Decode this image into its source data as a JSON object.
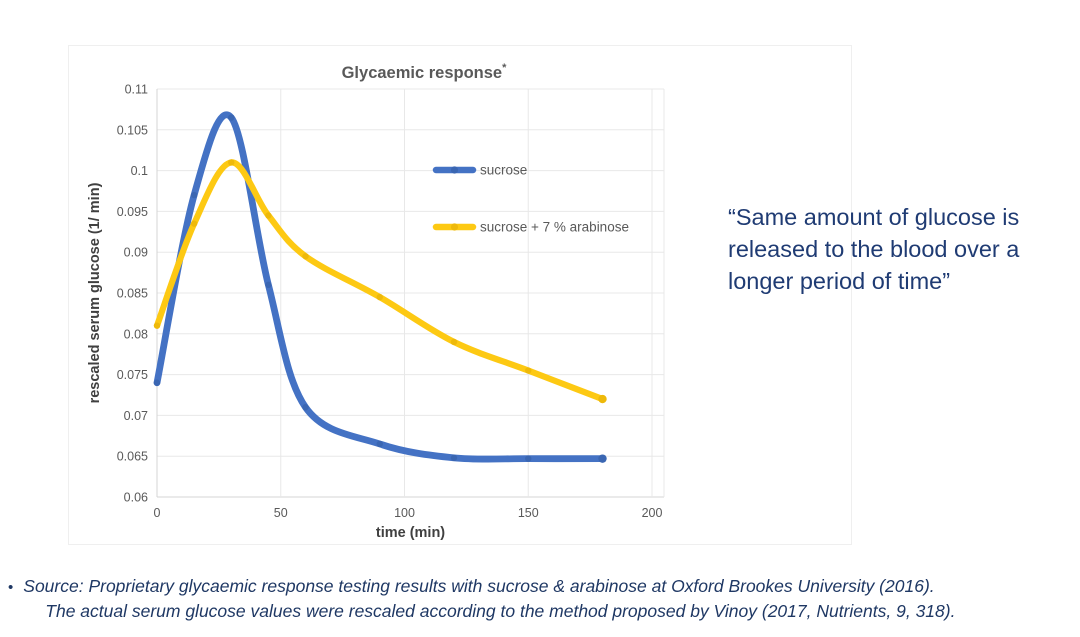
{
  "chart_data": {
    "type": "line",
    "title": "Glycaemic response",
    "title_note": "*",
    "xlabel": "time (min)",
    "ylabel": "rescaled serum glucose (1/ min)",
    "x": [
      0,
      15,
      30,
      45,
      60,
      90,
      120,
      150,
      180
    ],
    "series": [
      {
        "name": "sucrose",
        "color": "#4472c4",
        "marker_color": "#3a66b2",
        "stroke_width": 6.8,
        "values": [
          0.074,
          0.097,
          0.1065,
          0.086,
          0.071,
          0.0665,
          0.0648,
          0.0647,
          0.0647
        ]
      },
      {
        "name": "sucrose + 7 % arabinose",
        "color": "#fdc913",
        "marker_color": "#eeb90a",
        "stroke_width": 6.2,
        "values": [
          0.081,
          0.0935,
          0.101,
          0.0945,
          0.0895,
          0.0845,
          0.079,
          0.0755,
          0.072
        ]
      }
    ],
    "xlim": [
      0,
      207
    ],
    "ylim": [
      0.06,
      0.11
    ],
    "x_ticks": [
      0,
      50,
      100,
      150,
      200
    ],
    "y_ticks": [
      0.06,
      0.065,
      0.07,
      0.075,
      0.08,
      0.085,
      0.09,
      0.095,
      0.1,
      0.105,
      0.11
    ],
    "grid": true,
    "legend_position": "inside-upper-right",
    "colors": {
      "grid": "#e8e8e8",
      "axis": "#d4d4d4",
      "tick_label": "#595959",
      "axis_title": "#404040",
      "chart_title": "#595959",
      "legend_text": "#595959"
    }
  },
  "quote": {
    "text": "“Same amount of glucose is released to the blood over a longer period of time”",
    "color": "#1f3b73"
  },
  "source": {
    "bullet": "•",
    "line1": "Source: Proprietary glycaemic response testing results with sucrose & arabinose at Oxford Brookes University (2016).",
    "line2": "The actual serum glucose values were rescaled according to the method proposed by Vinoy (2017, Nutrients, 9, 318).",
    "color": "#1f3864"
  }
}
